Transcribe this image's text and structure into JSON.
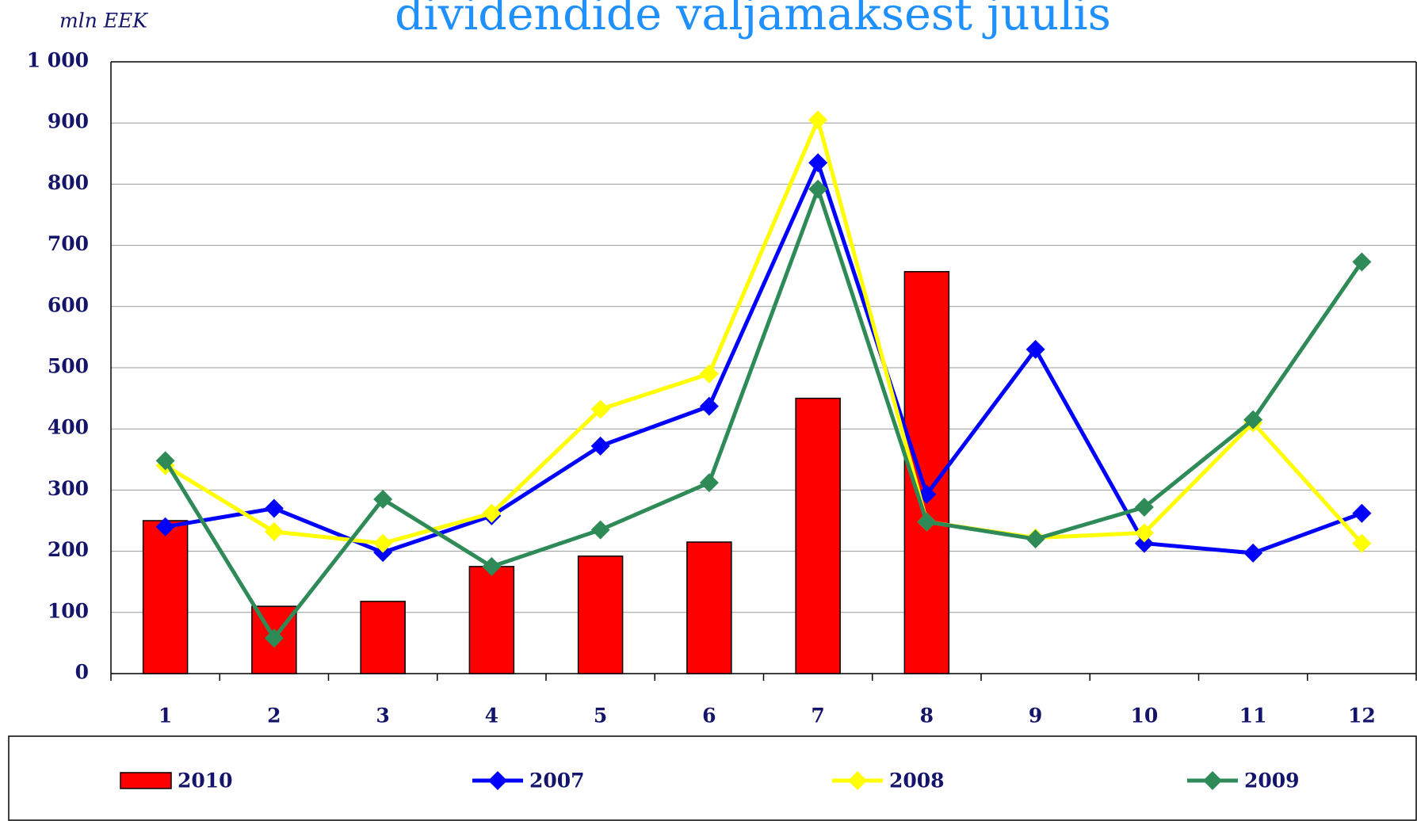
{
  "chart_data": {
    "type": "combo",
    "title": "dividendide väljamaksest juulis",
    "y_label": "mln EEK",
    "categories": [
      "1",
      "2",
      "3",
      "4",
      "5",
      "6",
      "7",
      "8",
      "9",
      "10",
      "11",
      "12"
    ],
    "series": [
      {
        "name": "2010",
        "type": "bar",
        "color": "#ff0000",
        "values": [
          250,
          110,
          118,
          175,
          192,
          215,
          450,
          657,
          null,
          null,
          null,
          null
        ]
      },
      {
        "name": "2007",
        "type": "line",
        "color": "#0000ff",
        "values": [
          240,
          270,
          198,
          258,
          372,
          437,
          835,
          293,
          530,
          213,
          197,
          262
        ]
      },
      {
        "name": "2008",
        "type": "line",
        "color": "#ffff00",
        "values": [
          340,
          232,
          213,
          262,
          432,
          490,
          905,
          248,
          222,
          230,
          410,
          213
        ]
      },
      {
        "name": "2009",
        "type": "line",
        "color": "#2e8b57",
        "values": [
          348,
          58,
          285,
          175,
          235,
          312,
          792,
          248,
          220,
          272,
          415,
          673
        ]
      }
    ],
    "ylim": [
      0,
      1000
    ],
    "yticks": [
      0,
      100,
      200,
      300,
      400,
      500,
      600,
      700,
      800,
      900,
      {
        "value": 1000,
        "label": "1 000"
      }
    ],
    "grid": true,
    "legend": "bottom"
  }
}
